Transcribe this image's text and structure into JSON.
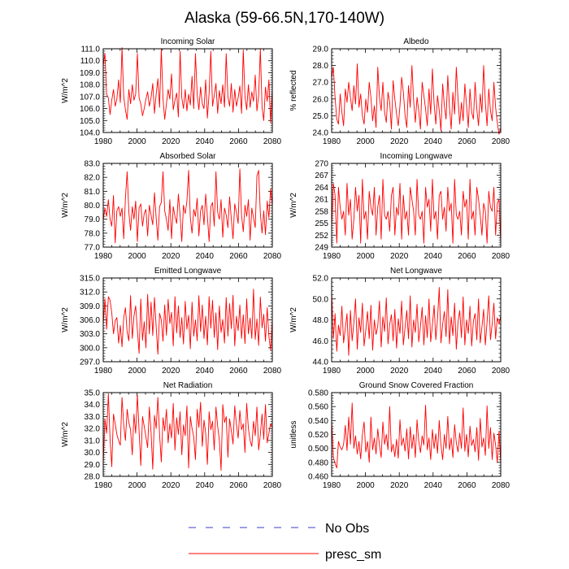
{
  "title": "Alaska (59-66.5N,170-140W)",
  "legend": [
    {
      "name": "No Obs",
      "color": "#3b3bcc",
      "dash": true
    },
    {
      "name": "presc_sm",
      "color": "#ff0000",
      "dash": false
    }
  ],
  "chart_data": [
    {
      "type": "line",
      "title": "Incoming Solar",
      "xlabel": "",
      "ylabel": "W/m^2",
      "xlim": [
        1980,
        2080
      ],
      "ylim": [
        104.0,
        111.0
      ],
      "xticks": [
        "1980",
        "2000",
        "2020",
        "2040",
        "2060",
        "2080"
      ],
      "yticks": [
        "104.0",
        "105.0",
        "106.0",
        "107.0",
        "108.0",
        "109.0",
        "110.0",
        "111.0"
      ],
      "series": [
        {
          "name": "presc_sm",
          "color": "#ff0000",
          "values": [
            109.6,
            110.6,
            107.2,
            106.9,
            105.5,
            106.7,
            107.6,
            106.2,
            106.8,
            108.4,
            106.5,
            111.1,
            107.0,
            105.9,
            105.1,
            107.6,
            106.4,
            108.0,
            106.7,
            107.2,
            110.6,
            106.9,
            106.4,
            105.4,
            106.0,
            106.8,
            107.4,
            106.2,
            106.9,
            108.1,
            105.6,
            107.2,
            108.5,
            106.1,
            111.0,
            106.8,
            105.1,
            106.4,
            107.6,
            106.8,
            108.9,
            105.9,
            106.7,
            107.3,
            105.3,
            110.8,
            106.9,
            106.0,
            107.6,
            105.8,
            107.2,
            106.3,
            108.7,
            106.0,
            110.6,
            107.2,
            105.9,
            107.8,
            106.4,
            106.0,
            108.4,
            105.2,
            107.3,
            110.8,
            106.2,
            107.1,
            108.1,
            105.6,
            107.5,
            106.4,
            108.0,
            106.1,
            110.6,
            107.0,
            106.2,
            108.1,
            105.7,
            107.6,
            106.2,
            106.9,
            107.9,
            105.6,
            110.9,
            107.0,
            105.9,
            108.0,
            106.1,
            107.4,
            106.6,
            108.8,
            105.8,
            107.1,
            111.0,
            106.1,
            105.0,
            107.8,
            106.6,
            108.4,
            104.8,
            107.6
          ]
        }
      ]
    },
    {
      "type": "line",
      "title": "Albedo",
      "xlabel": "",
      "ylabel": "% reflected",
      "xlim": [
        1980,
        2080
      ],
      "ylim": [
        24.0,
        29.0
      ],
      "xticks": [
        "1980",
        "2000",
        "2020",
        "2040",
        "2060",
        "2080"
      ],
      "yticks": [
        "24.0",
        "25.0",
        "26.0",
        "27.0",
        "28.0",
        "29.0"
      ],
      "series": [
        {
          "name": "presc_sm",
          "color": "#ff0000",
          "values": [
            27.3,
            27.9,
            26.1,
            24.8,
            24.5,
            26.3,
            25.2,
            24.4,
            26.6,
            25.8,
            27.0,
            26.1,
            25.3,
            26.8,
            25.7,
            28.1,
            25.5,
            26.3,
            25.0,
            24.5,
            26.0,
            25.2,
            27.0,
            26.1,
            24.7,
            25.6,
            24.3,
            27.9,
            26.1,
            25.3,
            27.0,
            25.2,
            24.6,
            26.4,
            25.8,
            24.2,
            27.1,
            26.0,
            25.1,
            24.4,
            25.6,
            27.3,
            26.4,
            25.0,
            24.3,
            26.8,
            25.5,
            28.0,
            25.9,
            24.6,
            26.1,
            25.3,
            24.2,
            27.0,
            26.2,
            25.4,
            24.4,
            26.6,
            25.1,
            27.8,
            25.7,
            24.5,
            26.2,
            25.3,
            24.1,
            26.9,
            25.6,
            24.8,
            27.4,
            25.5,
            24.2,
            26.4,
            25.1,
            27.9,
            26.0,
            24.5,
            25.8,
            24.7,
            26.9,
            25.6,
            24.3,
            26.6,
            25.2,
            24.8,
            27.0,
            25.4,
            24.4,
            26.3,
            25.2,
            28.0,
            25.8,
            24.4,
            26.6,
            25.3,
            24.7,
            27.0,
            25.5,
            24.6,
            23.9,
            24.3
          ]
        }
      ]
    },
    {
      "type": "line",
      "title": "Absorbed Solar",
      "xlabel": "",
      "ylabel": "W/m^2",
      "xlim": [
        1980,
        2080
      ],
      "ylim": [
        77.0,
        83.0
      ],
      "xticks": [
        "1980",
        "2000",
        "2020",
        "2040",
        "2060",
        "2080"
      ],
      "yticks": [
        "77.0",
        "78.0",
        "79.0",
        "80.0",
        "81.0",
        "82.0",
        "83.0"
      ],
      "series": [
        {
          "name": "presc_sm",
          "color": "#ff0000",
          "values": [
            78.9,
            79.8,
            79.2,
            80.4,
            79.0,
            78.5,
            80.7,
            77.3,
            79.6,
            79.9,
            79.2,
            79.8,
            77.6,
            80.5,
            82.4,
            79.5,
            78.2,
            79.9,
            79.0,
            80.3,
            77.4,
            79.8,
            80.1,
            78.5,
            79.4,
            79.7,
            77.8,
            80.0,
            79.3,
            78.6,
            80.9,
            79.1,
            77.5,
            79.9,
            80.2,
            82.4,
            79.6,
            79.0,
            78.2,
            80.4,
            77.6,
            79.9,
            79.2,
            78.7,
            80.8,
            79.3,
            77.4,
            80.0,
            79.4,
            80.3,
            82.5,
            79.1,
            78.0,
            79.7,
            79.2,
            80.5,
            77.8,
            79.6,
            80.0,
            78.6,
            80.8,
            79.2,
            77.4,
            79.9,
            80.2,
            78.5,
            82.4,
            79.5,
            79.0,
            80.4,
            77.7,
            79.8,
            79.3,
            78.4,
            80.6,
            79.0,
            77.6,
            80.1,
            79.5,
            78.7,
            82.6,
            79.3,
            78.1,
            80.0,
            79.2,
            80.4,
            77.5,
            79.8,
            79.1,
            78.4,
            82.1,
            82.5,
            79.4,
            78.0,
            79.6,
            77.9,
            80.3,
            79.1,
            81.2,
            80.0
          ]
        }
      ]
    },
    {
      "type": "line",
      "title": "Incoming Longwave",
      "xlabel": "",
      "ylabel": "W/m^2",
      "xlim": [
        1980,
        2080
      ],
      "ylim": [
        249,
        270
      ],
      "xticks": [
        "1980",
        "2000",
        "2020",
        "2040",
        "2060",
        "2080"
      ],
      "yticks": [
        "249",
        "252",
        "255",
        "258",
        "261",
        "264",
        "267",
        "270"
      ],
      "series": [
        {
          "name": "presc_sm",
          "color": "#ff0000",
          "values": [
            254,
            265,
            262,
            250,
            264,
            259,
            256,
            258,
            252,
            265,
            257,
            261,
            251,
            256,
            264,
            258,
            262,
            250,
            266,
            256,
            258,
            251,
            263,
            259,
            257,
            264,
            252,
            259,
            262,
            251,
            266,
            257,
            256,
            258,
            253,
            262,
            264,
            252,
            259,
            257,
            265,
            251,
            262,
            256,
            258,
            252,
            264,
            261,
            258,
            252,
            266,
            257,
            256,
            258,
            250,
            264,
            259,
            261,
            253,
            266,
            256,
            258,
            251,
            262,
            263,
            256,
            259,
            253,
            264,
            258,
            260,
            250,
            266,
            257,
            256,
            258,
            252,
            263,
            259,
            261,
            251,
            266,
            256,
            258,
            252,
            264,
            261,
            257,
            252,
            260,
            258,
            250,
            263,
            259,
            258,
            264,
            252,
            260,
            261,
            250
          ]
        }
      ]
    },
    {
      "type": "line",
      "title": "Emitted Longwave",
      "xlabel": "",
      "ylabel": "W/m^2",
      "xlim": [
        1980,
        2080
      ],
      "ylim": [
        297.0,
        315.0
      ],
      "xticks": [
        "1980",
        "2000",
        "2020",
        "2040",
        "2060",
        "2080"
      ],
      "yticks": [
        "297.0",
        "300.0",
        "303.0",
        "306.0",
        "309.0",
        "312.0",
        "315.0"
      ],
      "series": [
        {
          "name": "presc_sm",
          "color": "#ff0000",
          "values": [
            305.0,
            310.5,
            304.0,
            311.0,
            310.2,
            307.5,
            303.0,
            305.8,
            306.5,
            301.0,
            304.8,
            300.2,
            306.5,
            308.6,
            303.4,
            301.5,
            311.2,
            302.0,
            306.8,
            309.0,
            303.8,
            298.8,
            310.5,
            301.6,
            305.6,
            300.0,
            311.5,
            303.0,
            309.8,
            302.6,
            310.8,
            304.5,
            298.6,
            307.4,
            306.0,
            301.4,
            309.2,
            302.7,
            310.4,
            305.2,
            307.6,
            300.4,
            311.0,
            303.2,
            309.0,
            302.2,
            306.5,
            300.8,
            310.0,
            304.0,
            307.0,
            299.8,
            309.8,
            302.5,
            306.0,
            301.5,
            311.2,
            303.5,
            309.2,
            302.0,
            306.8,
            300.6,
            311.0,
            304.2,
            310.2,
            302.2,
            307.5,
            299.6,
            309.0,
            303.3,
            306.1,
            301.0,
            310.8,
            302.5,
            309.5,
            304.1,
            311.3,
            300.4,
            306.8,
            303.7,
            309.2,
            302.0,
            307.1,
            300.9,
            310.5,
            303.0,
            306.4,
            302.0,
            312.6,
            301.8,
            306.2,
            300.5,
            310.9,
            304.3,
            307.2,
            301.4,
            308.6,
            302.5,
            299.4,
            306.0
          ]
        }
      ]
    },
    {
      "type": "line",
      "title": "Net Longwave",
      "xlabel": "",
      "ylabel": "W/m^2",
      "xlim": [
        1980,
        2080
      ],
      "ylim": [
        44.0,
        52.0
      ],
      "xticks": [
        "1980",
        "2000",
        "2020",
        "2040",
        "2060",
        "2080"
      ],
      "yticks": [
        "44.0",
        "46.0",
        "48.0",
        "50.0",
        "52.0"
      ],
      "series": [
        {
          "name": "presc_sm",
          "color": "#ff0000",
          "values": [
            50.8,
            46.2,
            48.6,
            45.0,
            47.5,
            46.5,
            49.3,
            45.8,
            47.2,
            48.6,
            44.6,
            48.9,
            46.0,
            47.7,
            50.0,
            45.2,
            48.2,
            46.8,
            49.6,
            45.5,
            47.0,
            48.8,
            46.2,
            49.4,
            45.1,
            48.0,
            46.6,
            47.4,
            49.8,
            45.4,
            48.3,
            46.9,
            50.1,
            45.7,
            47.6,
            48.5,
            46.0,
            49.0,
            45.3,
            48.1,
            46.7,
            49.8,
            45.6,
            47.3,
            48.9,
            46.2,
            50.3,
            45.4,
            48.0,
            46.8,
            49.5,
            45.9,
            47.4,
            49.2,
            45.6,
            48.4,
            46.3,
            50.0,
            45.9,
            47.5,
            49.4,
            46.1,
            48.1,
            51.1,
            45.8,
            47.6,
            48.8,
            46.4,
            50.9,
            45.7,
            48.3,
            46.5,
            49.6,
            45.2,
            47.8,
            48.9,
            46.3,
            50.2,
            45.6,
            48.0,
            46.7,
            49.3,
            45.5,
            47.9,
            48.6,
            46.1,
            50.0,
            45.8,
            47.3,
            49.0,
            45.6,
            47.8,
            50.3,
            46.1,
            47.6,
            49.6,
            46.2,
            48.2,
            47.6,
            48.4
          ]
        }
      ]
    },
    {
      "type": "line",
      "title": "Net Radiation",
      "xlabel": "",
      "ylabel": "W/m^2",
      "xlim": [
        1980,
        2080
      ],
      "ylim": [
        28.0,
        35.0
      ],
      "xticks": [
        "1980",
        "2000",
        "2020",
        "2040",
        "2060",
        "2080"
      ],
      "yticks": [
        "28.0",
        "29.0",
        "30.0",
        "31.0",
        "32.0",
        "33.0",
        "34.0",
        "35.0"
      ],
      "series": [
        {
          "name": "presc_sm",
          "color": "#ff0000",
          "values": [
            29.0,
            32.8,
            31.6,
            34.9,
            31.1,
            28.8,
            33.2,
            32.4,
            31.5,
            31.0,
            30.6,
            34.6,
            32.3,
            31.0,
            33.6,
            32.5,
            31.9,
            29.8,
            33.2,
            31.6,
            34.8,
            31.8,
            28.9,
            33.0,
            32.2,
            31.3,
            30.4,
            33.8,
            31.7,
            28.6,
            33.1,
            32.0,
            34.6,
            31.5,
            29.2,
            32.9,
            31.8,
            33.6,
            30.8,
            32.4,
            31.2,
            34.1,
            30.2,
            32.9,
            31.5,
            33.4,
            29.8,
            32.3,
            31.4,
            33.9,
            28.7,
            33.0,
            32.0,
            31.3,
            29.4,
            33.6,
            32.1,
            34.2,
            30.5,
            32.7,
            31.6,
            29.0,
            33.4,
            31.9,
            32.6,
            30.2,
            33.8,
            32.2,
            31.0,
            28.5,
            34.0,
            32.5,
            33.0,
            29.6,
            32.8,
            31.8,
            30.7,
            33.9,
            32.3,
            31.2,
            33.5,
            31.9,
            32.4,
            30.0,
            34.1,
            32.0,
            31.0,
            30.5,
            32.6,
            31.4,
            33.8,
            30.2,
            31.5,
            33.2,
            31.1,
            34.0,
            30.8,
            31.6,
            32.4,
            32.1
          ]
        }
      ]
    },
    {
      "type": "line",
      "title": "Ground Snow Covered Fraction",
      "xlabel": "",
      "ylabel": "unitless",
      "xlim": [
        1980,
        2080
      ],
      "ylim": [
        0.46,
        0.58
      ],
      "xticks": [
        "1980",
        "2000",
        "2020",
        "2040",
        "2060",
        "2080"
      ],
      "yticks": [
        "0.460",
        "0.480",
        "0.500",
        "0.520",
        "0.540",
        "0.560",
        "0.580"
      ],
      "series": [
        {
          "name": "presc_sm",
          "color": "#ff0000",
          "values": [
            0.54,
            0.488,
            0.478,
            0.472,
            0.51,
            0.502,
            0.498,
            0.506,
            0.533,
            0.497,
            0.545,
            0.506,
            0.565,
            0.5,
            0.518,
            0.492,
            0.51,
            0.485,
            0.52,
            0.538,
            0.495,
            0.51,
            0.48,
            0.545,
            0.498,
            0.515,
            0.492,
            0.528,
            0.505,
            0.487,
            0.538,
            0.506,
            0.52,
            0.498,
            0.56,
            0.495,
            0.506,
            0.488,
            0.513,
            0.486,
            0.541,
            0.504,
            0.515,
            0.496,
            0.528,
            0.485,
            0.531,
            0.5,
            0.52,
            0.487,
            0.541,
            0.51,
            0.494,
            0.518,
            0.505,
            0.562,
            0.498,
            0.515,
            0.484,
            0.527,
            0.5,
            0.521,
            0.493,
            0.54,
            0.505,
            0.484,
            0.52,
            0.5,
            0.546,
            0.498,
            0.515,
            0.487,
            0.534,
            0.508,
            0.495,
            0.522,
            0.5,
            0.558,
            0.496,
            0.52,
            0.488,
            0.532,
            0.504,
            0.513,
            0.495,
            0.53,
            0.483,
            0.543,
            0.502,
            0.515,
            0.49,
            0.561,
            0.5,
            0.53,
            0.484,
            0.522,
            0.505,
            0.48,
            0.525,
            0.478
          ]
        }
      ]
    }
  ]
}
